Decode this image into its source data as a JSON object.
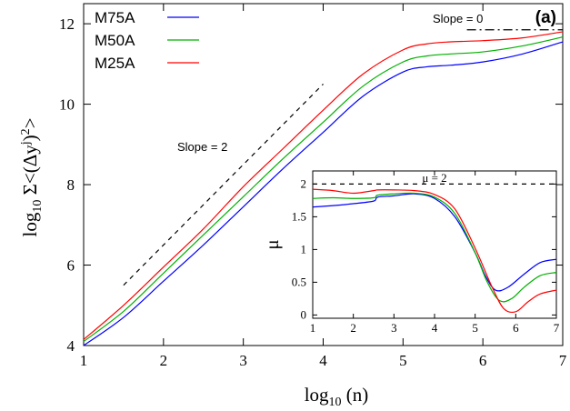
{
  "chart_data": [
    {
      "type": "line",
      "panel_label": "(a)",
      "xlabel_base": "log",
      "xlabel_sub": "10",
      "xlabel_rest": " (n)",
      "ylabel_base": "log",
      "ylabel_sub": "10",
      "ylabel_rest": " Σ<(Δy",
      "ylabel_sup": "j",
      "ylabel_close": ")",
      "ylabel_sup2": "2",
      "ylabel_end": ">",
      "xlim": [
        1,
        7
      ],
      "ylim": [
        4,
        12.5
      ],
      "xticks": [
        1,
        2,
        3,
        4,
        5,
        6,
        7
      ],
      "xtick_labels": [
        "1",
        "2",
        "3",
        "4",
        "5",
        "6",
        "7"
      ],
      "yticks": [
        4,
        6,
        8,
        10,
        12
      ],
      "ytick_labels": [
        "4",
        "6",
        "8",
        "10",
        "12"
      ],
      "legend_position": "top-left",
      "series": [
        {
          "name": "M75A",
          "color": "#0000ff",
          "x": [
            1.0,
            1.5,
            2.0,
            2.5,
            3.0,
            3.5,
            4.0,
            4.5,
            5.0,
            5.3,
            5.6,
            6.0,
            6.5,
            7.0
          ],
          "y": [
            4.0,
            4.7,
            5.6,
            6.5,
            7.45,
            8.4,
            9.3,
            10.2,
            10.8,
            10.93,
            10.97,
            11.05,
            11.25,
            11.55
          ]
        },
        {
          "name": "M50A",
          "color": "#00b000",
          "x": [
            1.0,
            1.5,
            2.0,
            2.5,
            3.0,
            3.5,
            4.0,
            4.5,
            5.0,
            5.3,
            5.6,
            6.0,
            6.5,
            7.0
          ],
          "y": [
            4.1,
            4.85,
            5.8,
            6.75,
            7.7,
            8.65,
            9.55,
            10.45,
            11.05,
            11.2,
            11.25,
            11.3,
            11.45,
            11.67
          ]
        },
        {
          "name": "M25A",
          "color": "#ff0000",
          "x": [
            1.0,
            1.5,
            2.0,
            2.5,
            3.0,
            3.5,
            4.0,
            4.5,
            5.0,
            5.3,
            5.6,
            6.0,
            6.5,
            7.0
          ],
          "y": [
            4.15,
            5.0,
            5.95,
            6.9,
            7.95,
            8.9,
            9.85,
            10.75,
            11.35,
            11.5,
            11.55,
            11.58,
            11.65,
            11.8
          ]
        }
      ],
      "reference_lines": [
        {
          "label": "Slope = 2",
          "style": "dashed",
          "x": [
            1.5,
            4.0
          ],
          "y": [
            5.5,
            10.5
          ]
        },
        {
          "label": "Slope = 0",
          "style": "dash-dot",
          "x": [
            5.8,
            7.0
          ],
          "y": [
            11.85,
            11.85
          ]
        }
      ]
    },
    {
      "type": "line",
      "inset": true,
      "ylabel": "μ",
      "xlim": [
        1,
        7
      ],
      "ylim": [
        -0.05,
        2.2
      ],
      "xticks": [
        1,
        2,
        3,
        4,
        5,
        6,
        7
      ],
      "xtick_labels": [
        "1",
        "2",
        "3",
        "4",
        "5",
        "6",
        "7"
      ],
      "yticks": [
        0,
        0.5,
        1,
        1.5,
        2
      ],
      "ytick_labels": [
        "0",
        "0.5",
        "1",
        "1.5",
        "2"
      ],
      "series": [
        {
          "name": "M75A",
          "color": "#0000ff",
          "x": [
            1.0,
            1.5,
            2.0,
            2.5,
            2.6,
            3.0,
            3.5,
            4.0,
            4.5,
            5.0,
            5.25,
            5.5,
            5.8,
            6.2,
            6.6,
            7.0
          ],
          "y": [
            1.65,
            1.67,
            1.7,
            1.74,
            1.8,
            1.82,
            1.85,
            1.78,
            1.5,
            0.95,
            0.6,
            0.38,
            0.42,
            0.62,
            0.8,
            0.85
          ]
        },
        {
          "name": "M50A",
          "color": "#00b000",
          "x": [
            1.0,
            1.5,
            2.0,
            2.5,
            2.6,
            3.0,
            3.5,
            4.0,
            4.5,
            5.0,
            5.3,
            5.6,
            5.9,
            6.2,
            6.6,
            7.0
          ],
          "y": [
            1.78,
            1.79,
            1.78,
            1.79,
            1.83,
            1.85,
            1.86,
            1.8,
            1.55,
            0.95,
            0.5,
            0.22,
            0.25,
            0.42,
            0.6,
            0.65
          ]
        },
        {
          "name": "M25A",
          "color": "#ff0000",
          "x": [
            1.0,
            1.5,
            2.0,
            2.5,
            2.6,
            3.0,
            3.5,
            4.0,
            4.5,
            5.0,
            5.4,
            5.7,
            6.0,
            6.3,
            6.6,
            7.0
          ],
          "y": [
            1.92,
            1.9,
            1.86,
            1.9,
            1.91,
            1.91,
            1.9,
            1.84,
            1.62,
            1.02,
            0.45,
            0.1,
            0.05,
            0.2,
            0.32,
            0.38
          ]
        }
      ],
      "reference_lines": [
        {
          "label": "μ = 2",
          "style": "dashed",
          "x": [
            1.0,
            7.0
          ],
          "y": [
            2.0,
            2.0
          ]
        }
      ]
    }
  ]
}
